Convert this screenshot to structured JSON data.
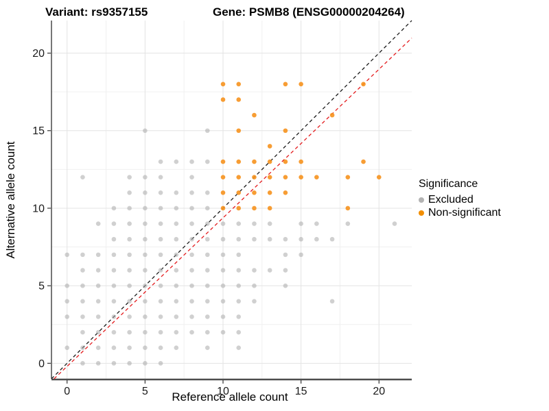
{
  "titles": {
    "variant": "Variant: rs9357155",
    "gene": "Gene: PSMB8 (ENSG00000204264)"
  },
  "axes": {
    "x_label": "Reference allele count",
    "y_label": "Alternative allele count",
    "x_ticks": [
      0,
      5,
      10,
      15,
      20
    ],
    "y_ticks": [
      0,
      5,
      10,
      15,
      20
    ],
    "minor_ticks": [
      2.5,
      7.5,
      12.5,
      17.5
    ],
    "x_domain": [
      -1,
      22.1
    ],
    "y_domain": [
      -1,
      22.1
    ]
  },
  "legend": {
    "title": "Significance",
    "items": [
      {
        "label": "Excluded",
        "color": "#B3B3B3"
      },
      {
        "label": "Non-significant",
        "color": "#F28E00"
      }
    ]
  },
  "colors": {
    "excluded_point": "#AAAAAA",
    "non_significant_point": "#F6921E",
    "identity_line": "#1A1A1A",
    "ratio_line": "#E41A1C",
    "grid_major": "#E3E3E3",
    "grid_minor": "#F0F0F0",
    "axis_line": "#333333",
    "tick_label": "#1A1A1A"
  },
  "chart_data": {
    "type": "scatter",
    "title": "Variant: rs9357155 / Gene: PSMB8 (ENSG00000204264)",
    "xlabel": "Reference allele count",
    "ylabel": "Alternative allele count",
    "xlim": [
      -1,
      22.1
    ],
    "ylim": [
      -1,
      22.1
    ],
    "grid": "on",
    "legend_position": "right",
    "series": [
      {
        "name": "Excluded",
        "color": "#AAAAAA",
        "opacity": 0.55,
        "points": [
          [
            1,
            0
          ],
          [
            2,
            0
          ],
          [
            3,
            0
          ],
          [
            4,
            0
          ],
          [
            5,
            0
          ],
          [
            6,
            0
          ],
          [
            0,
            1
          ],
          [
            1,
            1
          ],
          [
            2,
            1
          ],
          [
            3,
            1
          ],
          [
            4,
            1
          ],
          [
            5,
            1
          ],
          [
            6,
            1
          ],
          [
            7,
            1
          ],
          [
            9,
            1
          ],
          [
            11,
            1
          ],
          [
            1,
            2
          ],
          [
            2,
            2
          ],
          [
            3,
            2
          ],
          [
            4,
            2
          ],
          [
            5,
            2
          ],
          [
            6,
            2
          ],
          [
            7,
            2
          ],
          [
            8,
            2
          ],
          [
            9,
            2
          ],
          [
            10,
            2
          ],
          [
            11,
            2
          ],
          [
            0,
            3
          ],
          [
            1,
            3
          ],
          [
            2,
            3
          ],
          [
            3,
            3
          ],
          [
            4,
            3
          ],
          [
            5,
            3
          ],
          [
            6,
            3
          ],
          [
            7,
            3
          ],
          [
            8,
            3
          ],
          [
            9,
            3
          ],
          [
            10,
            3
          ],
          [
            11,
            3
          ],
          [
            0,
            4
          ],
          [
            1,
            4
          ],
          [
            2,
            4
          ],
          [
            3,
            4
          ],
          [
            4,
            4
          ],
          [
            5,
            4
          ],
          [
            6,
            4
          ],
          [
            7,
            4
          ],
          [
            8,
            4
          ],
          [
            9,
            4
          ],
          [
            10,
            4
          ],
          [
            11,
            4
          ],
          [
            12,
            4
          ],
          [
            17,
            4
          ],
          [
            0,
            5
          ],
          [
            1,
            5
          ],
          [
            2,
            5
          ],
          [
            3,
            5
          ],
          [
            4,
            5
          ],
          [
            5,
            5
          ],
          [
            6,
            5
          ],
          [
            7,
            5
          ],
          [
            8,
            5
          ],
          [
            9,
            5
          ],
          [
            10,
            5
          ],
          [
            11,
            5
          ],
          [
            12,
            5
          ],
          [
            14,
            5
          ],
          [
            1,
            6
          ],
          [
            2,
            6
          ],
          [
            3,
            6
          ],
          [
            4,
            6
          ],
          [
            5,
            6
          ],
          [
            6,
            6
          ],
          [
            7,
            6
          ],
          [
            8,
            6
          ],
          [
            9,
            6
          ],
          [
            10,
            6
          ],
          [
            11,
            6
          ],
          [
            12,
            6
          ],
          [
            13,
            6
          ],
          [
            14,
            6
          ],
          [
            0,
            7
          ],
          [
            1,
            7
          ],
          [
            2,
            7
          ],
          [
            3,
            7
          ],
          [
            4,
            7
          ],
          [
            5,
            7
          ],
          [
            6,
            7
          ],
          [
            7,
            7
          ],
          [
            8,
            7
          ],
          [
            9,
            7
          ],
          [
            10,
            7
          ],
          [
            11,
            7
          ],
          [
            14,
            7
          ],
          [
            15,
            7
          ],
          [
            3,
            8
          ],
          [
            4,
            8
          ],
          [
            5,
            8
          ],
          [
            6,
            8
          ],
          [
            7,
            8
          ],
          [
            8,
            8
          ],
          [
            9,
            8
          ],
          [
            10,
            8
          ],
          [
            11,
            8
          ],
          [
            12,
            8
          ],
          [
            13,
            8
          ],
          [
            14,
            8
          ],
          [
            15,
            8
          ],
          [
            16,
            8
          ],
          [
            17,
            8
          ],
          [
            2,
            9
          ],
          [
            3,
            9
          ],
          [
            4,
            9
          ],
          [
            5,
            9
          ],
          [
            6,
            9
          ],
          [
            7,
            9
          ],
          [
            8,
            9
          ],
          [
            9,
            9
          ],
          [
            10,
            9
          ],
          [
            11,
            9
          ],
          [
            12,
            9
          ],
          [
            13,
            9
          ],
          [
            15,
            9
          ],
          [
            16,
            9
          ],
          [
            18,
            9
          ],
          [
            21,
            9
          ],
          [
            3,
            10
          ],
          [
            4,
            10
          ],
          [
            5,
            10
          ],
          [
            6,
            10
          ],
          [
            7,
            10
          ],
          [
            8,
            10
          ],
          [
            9,
            10
          ],
          [
            4,
            11
          ],
          [
            5,
            11
          ],
          [
            6,
            11
          ],
          [
            7,
            11
          ],
          [
            8,
            11
          ],
          [
            9,
            11
          ],
          [
            1,
            12
          ],
          [
            4,
            12
          ],
          [
            5,
            12
          ],
          [
            6,
            12
          ],
          [
            8,
            12
          ],
          [
            6,
            13
          ],
          [
            7,
            13
          ],
          [
            8,
            13
          ],
          [
            9,
            13
          ],
          [
            5,
            15
          ],
          [
            9,
            15
          ]
        ]
      },
      {
        "name": "Non-significant",
        "color": "#F6921E",
        "opacity": 0.9,
        "points": [
          [
            10,
            10
          ],
          [
            11,
            10
          ],
          [
            12,
            10
          ],
          [
            13,
            10
          ],
          [
            18,
            10
          ],
          [
            10,
            11
          ],
          [
            11,
            11
          ],
          [
            12,
            11
          ],
          [
            13,
            11
          ],
          [
            14,
            11
          ],
          [
            10,
            12
          ],
          [
            11,
            12
          ],
          [
            12,
            12
          ],
          [
            13,
            12
          ],
          [
            14,
            12
          ],
          [
            15,
            12
          ],
          [
            16,
            12
          ],
          [
            18,
            12
          ],
          [
            20,
            12
          ],
          [
            10,
            13
          ],
          [
            11,
            13
          ],
          [
            12,
            13
          ],
          [
            13,
            13
          ],
          [
            14,
            13
          ],
          [
            15,
            13
          ],
          [
            19,
            13
          ],
          [
            13,
            14
          ],
          [
            11,
            15
          ],
          [
            14,
            15
          ],
          [
            12,
            16
          ],
          [
            17,
            16
          ],
          [
            10,
            17
          ],
          [
            11,
            17
          ],
          [
            10,
            18
          ],
          [
            11,
            18
          ],
          [
            14,
            18
          ],
          [
            15,
            18
          ],
          [
            19,
            18
          ]
        ]
      }
    ],
    "lines": [
      {
        "name": "identity-line",
        "slope": 1,
        "intercept": 0,
        "color": "#1A1A1A",
        "style": "dashed"
      },
      {
        "name": "expected-ratio-line",
        "slope": 0.958,
        "intercept": -0.2,
        "color": "#E41A1C",
        "style": "dashed"
      }
    ]
  }
}
